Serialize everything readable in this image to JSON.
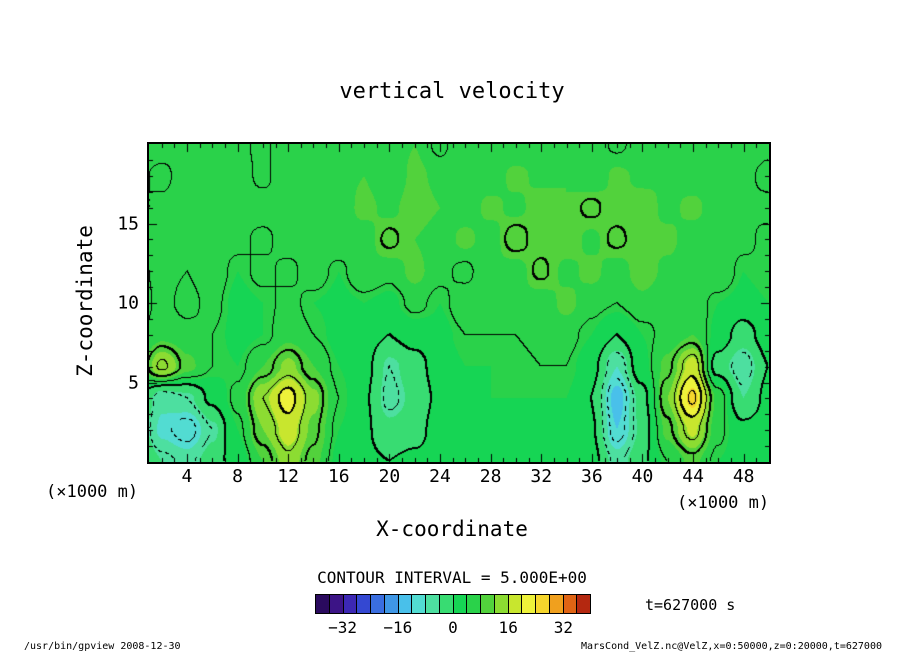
{
  "title": "vertical velocity",
  "axes": {
    "x": {
      "label": "X-coordinate",
      "unit": "(×1000 m)",
      "ticks": [
        4,
        8,
        12,
        16,
        20,
        24,
        28,
        32,
        36,
        40,
        44,
        48
      ]
    },
    "z": {
      "label": "Z-coordinate",
      "unit": "(×1000 m)",
      "ticks": [
        5,
        10,
        15
      ]
    }
  },
  "contour": {
    "caption": "CONTOUR INTERVAL = 5.000E+00",
    "interval": 5
  },
  "colorbar": {
    "min": -40,
    "max": 40,
    "colors": [
      "#2a0a5e",
      "#3c1486",
      "#3c28b4",
      "#3448d2",
      "#3a6ee0",
      "#3f97e6",
      "#49c0ea",
      "#52dcd2",
      "#4ddfa0",
      "#38dc72",
      "#16d554",
      "#2ad24a",
      "#52d23c",
      "#8cdc32",
      "#c8e62e",
      "#eef23a",
      "#f6d62c",
      "#f0a01e",
      "#e06414",
      "#b42810"
    ],
    "tick_values": [
      -32,
      -16,
      0,
      16,
      32
    ],
    "tick_labels": [
      "−32",
      "−16",
      "0",
      "16",
      "32"
    ]
  },
  "annotations": {
    "time_label": "t=627000 s"
  },
  "footer": {
    "left": "/usr/bin/gpview  2008-12-30",
    "right": "MarsCond_VelZ.nc@VelZ,x=0:50000,z=0:20000,t=627000"
  },
  "chart_data": {
    "type": "heatmap",
    "subtype": "filled-contour",
    "title": "vertical velocity",
    "xlabel": "X-coordinate (×1000 m)",
    "ylabel": "Z-coordinate (×1000 m)",
    "contour_interval": 5,
    "xlim": [
      1,
      50
    ],
    "zlim": [
      0,
      20
    ],
    "x": [
      0,
      2,
      4,
      6,
      8,
      10,
      12,
      14,
      16,
      18,
      20,
      22,
      24,
      26,
      28,
      30,
      32,
      34,
      36,
      38,
      40,
      42,
      44,
      46,
      48,
      50
    ],
    "z": [
      0,
      2,
      4,
      6,
      8,
      10,
      12,
      14,
      16,
      18,
      20
    ],
    "rows_start": "bottom (z=0) to top (z=20)",
    "values": [
      [
        2,
        -4,
        -6,
        -2,
        2,
        8,
        14,
        9,
        3,
        1,
        0,
        1,
        2,
        3,
        3,
        2,
        2,
        3,
        2,
        -6,
        -1,
        5,
        9,
        4,
        2,
        2
      ],
      [
        0,
        -9,
        -12,
        -5,
        4,
        12,
        18,
        11,
        4,
        1,
        -3,
        -2,
        2,
        3,
        4,
        3,
        3,
        3,
        1,
        -12,
        -3,
        9,
        17,
        6,
        1,
        2
      ],
      [
        2,
        -7,
        -5,
        1,
        6,
        15,
        22,
        13,
        5,
        1,
        -6,
        -3,
        1,
        3,
        4,
        4,
        4,
        4,
        0,
        -14,
        -2,
        12,
        26,
        7,
        -4,
        1
      ],
      [
        5,
        16,
        9,
        5,
        4,
        8,
        13,
        8,
        4,
        2,
        -5,
        -2,
        2,
        4,
        4,
        4,
        5,
        5,
        2,
        -8,
        3,
        9,
        18,
        -2,
        -7,
        0
      ],
      [
        4,
        7,
        6,
        5,
        3,
        4,
        7,
        5,
        3,
        2,
        0,
        2,
        3,
        5,
        5,
        5,
        6,
        6,
        4,
        0,
        4,
        6,
        8,
        3,
        -2,
        2
      ],
      [
        3,
        6,
        4,
        6,
        3,
        4,
        6,
        4,
        3,
        4,
        3,
        6,
        4,
        7,
        5,
        8,
        6,
        9,
        6,
        5,
        7,
        5,
        7,
        4,
        3,
        4
      ],
      [
        4,
        6,
        5,
        7,
        4,
        6,
        4,
        7,
        4,
        8,
        6,
        9,
        6,
        4,
        8,
        6,
        11,
        7,
        9,
        6,
        10,
        7,
        6,
        8,
        4,
        5
      ],
      [
        5,
        7,
        5,
        6,
        6,
        4,
        7,
        5,
        8,
        6,
        11,
        8,
        6,
        9,
        6,
        12,
        8,
        10,
        7,
        11,
        8,
        9,
        6,
        7,
        6,
        4
      ],
      [
        4,
        6,
        7,
        5,
        6,
        7,
        5,
        8,
        6,
        9,
        7,
        10,
        8,
        6,
        9,
        7,
        10,
        8,
        11,
        8,
        10,
        7,
        9,
        6,
        5,
        6
      ],
      [
        6,
        4,
        7,
        6,
        7,
        4,
        8,
        6,
        7,
        8,
        5,
        9,
        7,
        8,
        6,
        9,
        7,
        8,
        5,
        9,
        7,
        8,
        6,
        7,
        6,
        4
      ],
      [
        6,
        7,
        5,
        8,
        6,
        4,
        8,
        7,
        5,
        8,
        6,
        8,
        4,
        8,
        7,
        5,
        8,
        6,
        8,
        4,
        7,
        8,
        6,
        5,
        7,
        6
      ]
    ]
  }
}
